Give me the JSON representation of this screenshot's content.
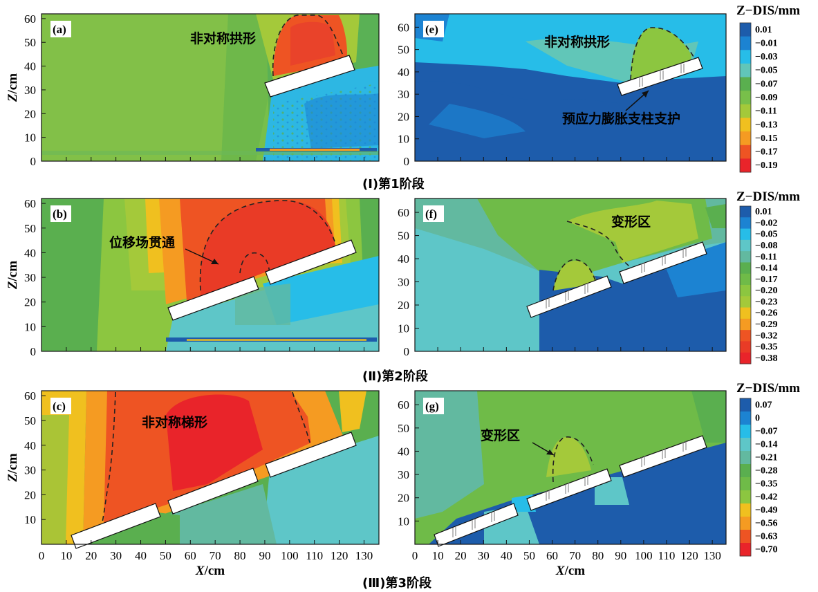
{
  "chart_data": {
    "type": "heatmap",
    "description_units": {
      "x": "cm",
      "z": "cm",
      "color": "mm"
    },
    "stages": [
      {
        "label": "(Ⅰ)第1阶段"
      },
      {
        "label": "(Ⅱ)第2阶段"
      },
      {
        "label": "(Ⅲ)第3阶段"
      }
    ],
    "axes": {
      "xlabel_italic": "X",
      "xlabel_unit": "/cm",
      "ylabel_italic": "Z",
      "ylabel_unit": "/cm",
      "x_ticks": [
        0,
        10,
        20,
        30,
        40,
        50,
        60,
        70,
        80,
        90,
        100,
        110,
        120,
        130
      ],
      "left_z_ticks": [
        0,
        10,
        20,
        30,
        40,
        50,
        60
      ],
      "right_z_ticks": [
        0,
        10,
        20,
        30,
        40,
        50,
        60
      ],
      "xlim": [
        0,
        136
      ],
      "left_zlim": [
        0,
        62
      ],
      "right_zlim": [
        0,
        66
      ]
    },
    "panels": [
      {
        "id": "a",
        "label": "(a)",
        "annotations": [
          {
            "text": "非对称拱形"
          }
        ]
      },
      {
        "id": "e",
        "label": "(e)",
        "annotations": [
          {
            "text": "非对称拱形"
          },
          {
            "text": "预应力膨胀支柱支护"
          }
        ]
      },
      {
        "id": "b",
        "label": "(b)",
        "annotations": [
          {
            "text": "位移场贯通"
          }
        ]
      },
      {
        "id": "f",
        "label": "(f)",
        "annotations": [
          {
            "text": "变形区"
          }
        ]
      },
      {
        "id": "c",
        "label": "(c)",
        "annotations": [
          {
            "text": "非对称梯形"
          }
        ]
      },
      {
        "id": "g",
        "label": "(g)",
        "annotations": [
          {
            "text": "变形区"
          }
        ]
      }
    ],
    "colorbars": [
      {
        "title": "Z−DIS/mm",
        "ticks": [
          "0.01",
          "−0.01",
          "−0.03",
          "−0.05",
          "−0.07",
          "−0.09",
          "−0.11",
          "−0.13",
          "−0.15",
          "−0.17",
          "−0.19"
        ],
        "colors": [
          "#1d5cab",
          "#1c83d2",
          "#27bde8",
          "#61c6b8",
          "#5aaf4f",
          "#78bf4a",
          "#a4c93a",
          "#f0c01f",
          "#f59b22",
          "#ee5423",
          "#e9242a"
        ]
      },
      {
        "title": "Z−DIS/mm",
        "ticks": [
          "0.01",
          "−0.02",
          "−0.05",
          "−0.08",
          "−0.11",
          "−0.14",
          "−0.17",
          "−0.20",
          "−0.23",
          "−0.26",
          "−0.29",
          "−0.32",
          "−0.35",
          "−0.38"
        ],
        "colors": [
          "#1d5cab",
          "#1c83d2",
          "#27bde8",
          "#5ec6c8",
          "#62b9a0",
          "#5aaf4f",
          "#6fbb48",
          "#8cc640",
          "#a4c93a",
          "#f0c01f",
          "#f59b22",
          "#ee5423",
          "#e93b26",
          "#e9242a"
        ]
      },
      {
        "title": "Z−DIS/mm",
        "ticks": [
          "0.07",
          "0",
          "−0.07",
          "−0.14",
          "−0.21",
          "−0.28",
          "−0.35",
          "−0.42",
          "−0.49",
          "−0.56",
          "−0.63",
          "−0.70"
        ],
        "colors": [
          "#1d5cab",
          "#1c83d2",
          "#27bde8",
          "#5ec6c8",
          "#62b9a0",
          "#5aaf4f",
          "#6fbb48",
          "#8cc640",
          "#f0c01f",
          "#f59b22",
          "#ee5423",
          "#e9242a"
        ]
      }
    ]
  }
}
